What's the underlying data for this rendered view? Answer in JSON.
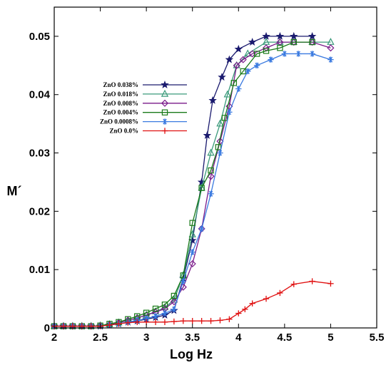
{
  "chart_data": {
    "type": "line",
    "title": "",
    "xlabel": "Log Hz",
    "ylabel": "M´",
    "xlim": [
      2,
      5.5
    ],
    "ylim": [
      0,
      0.055
    ],
    "xticks": [
      2,
      2.5,
      3,
      3.5,
      4,
      4.5,
      5,
      5.5
    ],
    "xtick_labels": [
      "2",
      "2.5",
      "3",
      "3.5",
      "4",
      "4.5",
      "5",
      "5.5"
    ],
    "yticks": [
      0,
      0.01,
      0.02,
      0.03,
      0.04,
      0.05
    ],
    "ytick_labels": [
      "0",
      "0.01",
      "0.02",
      "0.03",
      "0.04",
      "0.05"
    ],
    "grid": false,
    "legend_position": "upper-left",
    "series": [
      {
        "name": "ZnO 0.038%",
        "color": "#1a1a6e",
        "marker": "star",
        "points": [
          [
            2,
            0.0003
          ],
          [
            2.1,
            0.0003
          ],
          [
            2.2,
            0.0003
          ],
          [
            2.3,
            0.0003
          ],
          [
            2.4,
            0.0003
          ],
          [
            2.5,
            0.0003
          ],
          [
            2.6,
            0.0005
          ],
          [
            2.7,
            0.0007
          ],
          [
            2.8,
            0.001
          ],
          [
            2.9,
            0.0012
          ],
          [
            3.0,
            0.0015
          ],
          [
            3.1,
            0.0018
          ],
          [
            3.2,
            0.0022
          ],
          [
            3.3,
            0.003
          ],
          [
            3.4,
            0.0085
          ],
          [
            3.5,
            0.015
          ],
          [
            3.6,
            0.025
          ],
          [
            3.66,
            0.033
          ],
          [
            3.72,
            0.039
          ],
          [
            3.82,
            0.043
          ],
          [
            3.9,
            0.046
          ],
          [
            4.0,
            0.0478
          ],
          [
            4.15,
            0.049
          ],
          [
            4.3,
            0.05
          ],
          [
            4.45,
            0.05
          ],
          [
            4.6,
            0.05
          ],
          [
            4.8,
            0.05
          ]
        ]
      },
      {
        "name": "ZnO 0.018%",
        "color": "#3a9a7a",
        "marker": "triangle",
        "points": [
          [
            2,
            0.0003
          ],
          [
            2.1,
            0.0003
          ],
          [
            2.2,
            0.0003
          ],
          [
            2.3,
            0.0003
          ],
          [
            2.4,
            0.0003
          ],
          [
            2.5,
            0.0004
          ],
          [
            2.6,
            0.0006
          ],
          [
            2.7,
            0.0009
          ],
          [
            2.8,
            0.0013
          ],
          [
            2.9,
            0.0017
          ],
          [
            3.0,
            0.0022
          ],
          [
            3.1,
            0.0028
          ],
          [
            3.2,
            0.0035
          ],
          [
            3.3,
            0.0048
          ],
          [
            3.4,
            0.009
          ],
          [
            3.5,
            0.016
          ],
          [
            3.6,
            0.024
          ],
          [
            3.7,
            0.03
          ],
          [
            3.8,
            0.035
          ],
          [
            3.88,
            0.04
          ],
          [
            3.98,
            0.045
          ],
          [
            4.1,
            0.047
          ],
          [
            4.3,
            0.049
          ],
          [
            4.45,
            0.049
          ],
          [
            4.6,
            0.049
          ],
          [
            4.8,
            0.049
          ],
          [
            5.0,
            0.049
          ]
        ]
      },
      {
        "name": "ZnO 0.008%",
        "color": "#7a1a8a",
        "marker": "diamond",
        "points": [
          [
            2,
            0.0003
          ],
          [
            2.1,
            0.0003
          ],
          [
            2.2,
            0.0003
          ],
          [
            2.3,
            0.0003
          ],
          [
            2.4,
            0.0003
          ],
          [
            2.5,
            0.0004
          ],
          [
            2.6,
            0.0006
          ],
          [
            2.7,
            0.0009
          ],
          [
            2.8,
            0.0013
          ],
          [
            2.9,
            0.0017
          ],
          [
            3.0,
            0.0022
          ],
          [
            3.1,
            0.0027
          ],
          [
            3.2,
            0.0033
          ],
          [
            3.3,
            0.0045
          ],
          [
            3.4,
            0.007
          ],
          [
            3.5,
            0.011
          ],
          [
            3.6,
            0.017
          ],
          [
            3.7,
            0.026
          ],
          [
            3.8,
            0.032
          ],
          [
            3.9,
            0.038
          ],
          [
            3.98,
            0.045
          ],
          [
            4.05,
            0.046
          ],
          [
            4.15,
            0.047
          ],
          [
            4.3,
            0.048
          ],
          [
            4.45,
            0.049
          ],
          [
            4.6,
            0.049
          ],
          [
            4.8,
            0.049
          ],
          [
            5.0,
            0.048
          ]
        ]
      },
      {
        "name": "ZnO 0.004%",
        "color": "#1a7a1a",
        "marker": "square",
        "points": [
          [
            2,
            0.0003
          ],
          [
            2.1,
            0.0003
          ],
          [
            2.2,
            0.0003
          ],
          [
            2.3,
            0.0003
          ],
          [
            2.4,
            0.0003
          ],
          [
            2.5,
            0.0004
          ],
          [
            2.6,
            0.0007
          ],
          [
            2.7,
            0.001
          ],
          [
            2.8,
            0.0015
          ],
          [
            2.9,
            0.002
          ],
          [
            3.0,
            0.0026
          ],
          [
            3.1,
            0.0033
          ],
          [
            3.2,
            0.004
          ],
          [
            3.3,
            0.0055
          ],
          [
            3.4,
            0.009
          ],
          [
            3.5,
            0.018
          ],
          [
            3.6,
            0.024
          ],
          [
            3.7,
            0.027
          ],
          [
            3.78,
            0.031
          ],
          [
            3.85,
            0.036
          ],
          [
            3.95,
            0.042
          ],
          [
            4.05,
            0.044
          ],
          [
            4.2,
            0.047
          ],
          [
            4.3,
            0.0475
          ],
          [
            4.45,
            0.048
          ],
          [
            4.6,
            0.049
          ],
          [
            4.8,
            0.049
          ]
        ]
      },
      {
        "name": "ZnO 0.0008%",
        "color": "#3a7ae0",
        "marker": "asterisk",
        "points": [
          [
            2,
            0.0003
          ],
          [
            2.1,
            0.0003
          ],
          [
            2.2,
            0.0003
          ],
          [
            2.3,
            0.0003
          ],
          [
            2.4,
            0.0003
          ],
          [
            2.5,
            0.0003
          ],
          [
            2.6,
            0.0005
          ],
          [
            2.7,
            0.0007
          ],
          [
            2.8,
            0.001
          ],
          [
            2.9,
            0.0013
          ],
          [
            3.0,
            0.0016
          ],
          [
            3.1,
            0.002
          ],
          [
            3.2,
            0.0025
          ],
          [
            3.3,
            0.0032
          ],
          [
            3.4,
            0.008
          ],
          [
            3.5,
            0.013
          ],
          [
            3.6,
            0.017
          ],
          [
            3.7,
            0.023
          ],
          [
            3.8,
            0.03
          ],
          [
            3.9,
            0.037
          ],
          [
            4.0,
            0.041
          ],
          [
            4.1,
            0.044
          ],
          [
            4.2,
            0.045
          ],
          [
            4.35,
            0.046
          ],
          [
            4.5,
            0.047
          ],
          [
            4.65,
            0.047
          ],
          [
            4.8,
            0.047
          ],
          [
            5.0,
            0.046
          ]
        ]
      },
      {
        "name": "ZnO 0.0%",
        "color": "#e01010",
        "marker": "plus",
        "points": [
          [
            2,
            0.0003
          ],
          [
            2.1,
            0.0003
          ],
          [
            2.2,
            0.0003
          ],
          [
            2.3,
            0.0003
          ],
          [
            2.4,
            0.0003
          ],
          [
            2.5,
            0.0003
          ],
          [
            2.6,
            0.0005
          ],
          [
            2.7,
            0.0007
          ],
          [
            2.8,
            0.0009
          ],
          [
            2.9,
            0.001
          ],
          [
            3.0,
            0.001
          ],
          [
            3.1,
            0.001
          ],
          [
            3.2,
            0.001
          ],
          [
            3.3,
            0.0011
          ],
          [
            3.4,
            0.0012
          ],
          [
            3.5,
            0.0012
          ],
          [
            3.6,
            0.0012
          ],
          [
            3.7,
            0.0012
          ],
          [
            3.8,
            0.0013
          ],
          [
            3.9,
            0.0015
          ],
          [
            4.0,
            0.0025
          ],
          [
            4.07,
            0.0032
          ],
          [
            4.15,
            0.0042
          ],
          [
            4.3,
            0.005
          ],
          [
            4.45,
            0.006
          ],
          [
            4.6,
            0.0075
          ],
          [
            4.8,
            0.008
          ],
          [
            5.0,
            0.0076
          ]
        ]
      }
    ]
  }
}
